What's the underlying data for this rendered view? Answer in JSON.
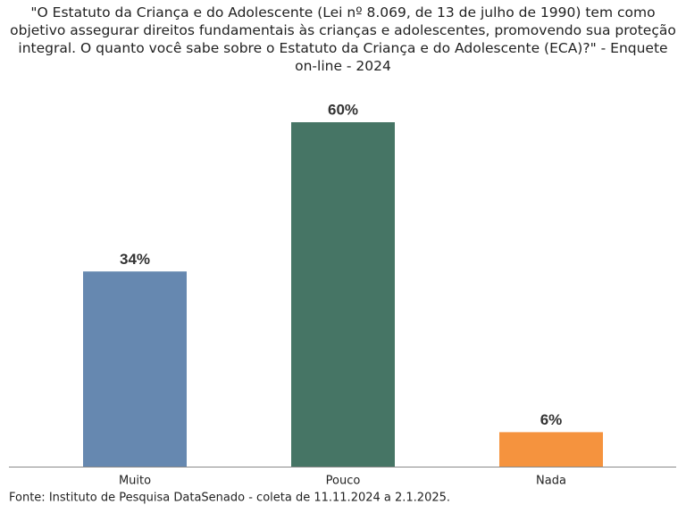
{
  "chart_data": {
    "type": "bar",
    "title": "\"O Estatuto da Criança e do Adolescente (Lei nº 8.069, de 13 de julho de 1990) tem como objetivo assegurar direitos fundamentais às crianças e adolescentes, promovendo sua proteção integral. O quanto você sabe sobre o Estatuto da Criança e do Adolescente (ECA)?\" - Enquete on-line - 2024",
    "categories": [
      "Muito",
      "Pouco",
      "Nada"
    ],
    "values": [
      34,
      60,
      6
    ],
    "value_labels": [
      "34%",
      "60%",
      "6%"
    ],
    "colors": [
      "#6688b0",
      "#467565",
      "#f5933e"
    ],
    "ylim": [
      0,
      60
    ],
    "source": "Fonte: Instituto de Pesquisa DataSenado - coleta de 11.11.2024 a 2.1.2025."
  }
}
